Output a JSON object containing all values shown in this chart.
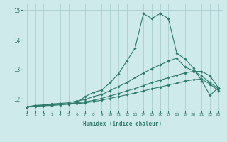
{
  "title": "",
  "xlabel": "Humidex (Indice chaleur)",
  "ylabel": "",
  "bg_color": "#ceeaea",
  "line_color": "#2d7a6a",
  "grid_color": "#aacfcf",
  "xlim": [
    -0.5,
    23.5
  ],
  "ylim": [
    11.6,
    15.2
  ],
  "xticks": [
    0,
    1,
    2,
    3,
    4,
    5,
    6,
    7,
    8,
    9,
    10,
    11,
    12,
    13,
    14,
    15,
    16,
    17,
    18,
    19,
    20,
    21,
    22,
    23
  ],
  "yticks": [
    12,
    13,
    14,
    15
  ],
  "ytick_labels": [
    "12",
    "13",
    "14",
    "15"
  ],
  "lines": [
    {
      "x": [
        0,
        1,
        2,
        3,
        4,
        5,
        6,
        7,
        8,
        9,
        10,
        11,
        12,
        13,
        14,
        15,
        16,
        17,
        18,
        19,
        20,
        21,
        22,
        23
      ],
      "y": [
        11.73,
        11.78,
        11.78,
        11.83,
        11.83,
        11.83,
        11.87,
        12.08,
        12.22,
        12.3,
        12.55,
        12.85,
        13.28,
        13.72,
        14.88,
        14.72,
        14.88,
        14.72,
        13.55,
        13.35,
        13.05,
        12.62,
        12.12,
        12.38
      ]
    },
    {
      "x": [
        0,
        1,
        2,
        3,
        4,
        5,
        6,
        7,
        8,
        9,
        10,
        11,
        12,
        13,
        14,
        15,
        16,
        17,
        18,
        19,
        20,
        21,
        22,
        23
      ],
      "y": [
        11.73,
        11.78,
        11.8,
        11.83,
        11.85,
        11.87,
        11.93,
        11.98,
        12.08,
        12.15,
        12.28,
        12.42,
        12.55,
        12.72,
        12.88,
        13.02,
        13.15,
        13.28,
        13.38,
        13.08,
        12.95,
        12.78,
        12.55,
        12.35
      ]
    },
    {
      "x": [
        0,
        1,
        2,
        3,
        4,
        5,
        6,
        7,
        8,
        9,
        10,
        11,
        12,
        13,
        14,
        15,
        16,
        17,
        18,
        19,
        20,
        21,
        22,
        23
      ],
      "y": [
        11.73,
        11.76,
        11.78,
        11.8,
        11.82,
        11.84,
        11.87,
        11.9,
        11.95,
        12.02,
        12.1,
        12.18,
        12.27,
        12.35,
        12.45,
        12.55,
        12.63,
        12.72,
        12.8,
        12.88,
        12.93,
        12.93,
        12.78,
        12.38
      ]
    },
    {
      "x": [
        0,
        1,
        2,
        3,
        4,
        5,
        6,
        7,
        8,
        9,
        10,
        11,
        12,
        13,
        14,
        15,
        16,
        17,
        18,
        19,
        20,
        21,
        22,
        23
      ],
      "y": [
        11.73,
        11.75,
        11.77,
        11.78,
        11.8,
        11.82,
        11.84,
        11.87,
        11.91,
        11.96,
        12.02,
        12.08,
        12.14,
        12.2,
        12.27,
        12.34,
        12.4,
        12.47,
        12.53,
        12.6,
        12.65,
        12.67,
        12.5,
        12.28
      ]
    }
  ]
}
